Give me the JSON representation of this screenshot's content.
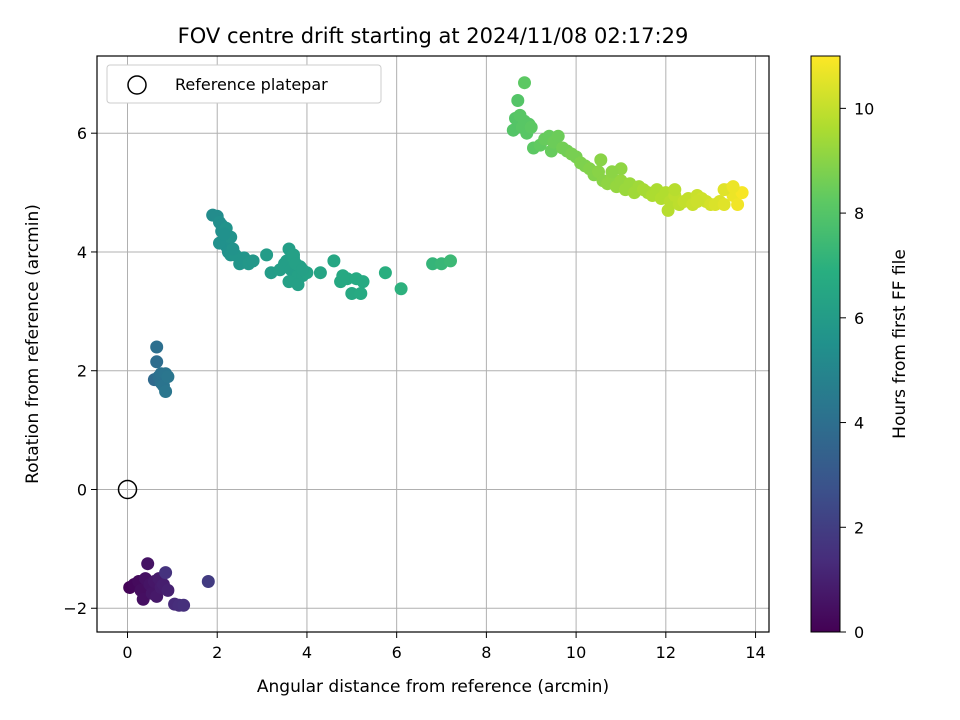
{
  "chart_data": {
    "type": "scatter",
    "title": "FOV centre drift starting at 2024/11/08 02:17:29",
    "xlabel": "Angular distance from reference (arcmin)",
    "ylabel": "Rotation from reference (arcmin)",
    "xlim": [
      -0.68,
      14.3
    ],
    "ylim": [
      -2.4,
      7.3
    ],
    "xticks": [
      0,
      2,
      4,
      6,
      8,
      10,
      12,
      14
    ],
    "yticks": [
      -2,
      0,
      2,
      4,
      6
    ],
    "xticklabels": [
      "0",
      "2",
      "4",
      "6",
      "8",
      "10",
      "12",
      "14"
    ],
    "yticklabels": [
      "−2",
      "0",
      "2",
      "4",
      "6"
    ],
    "grid": true,
    "legend": {
      "position": "upper-left",
      "entries": [
        {
          "label": "Reference platepar",
          "marker": "open-circle"
        }
      ]
    },
    "reference_point": {
      "x": 0,
      "y": 0
    },
    "colormap": "viridis",
    "colorbar": {
      "label": "Hours from first FF file",
      "min": 0,
      "max": 11,
      "ticks": [
        0,
        2,
        4,
        6,
        8,
        10
      ],
      "ticklabels": [
        "0",
        "2",
        "4",
        "6",
        "8",
        "10"
      ]
    },
    "points": [
      [
        0.05,
        -1.65,
        0.1
      ],
      [
        0.15,
        -1.6,
        0.2
      ],
      [
        0.25,
        -1.55,
        0.3
      ],
      [
        0.3,
        -1.7,
        0.4
      ],
      [
        0.35,
        -1.85,
        0.45
      ],
      [
        0.4,
        -1.5,
        0.5
      ],
      [
        0.45,
        -1.25,
        0.55
      ],
      [
        0.5,
        -1.6,
        0.6
      ],
      [
        0.55,
        -1.75,
        0.65
      ],
      [
        0.6,
        -1.55,
        0.7
      ],
      [
        0.65,
        -1.8,
        0.75
      ],
      [
        0.7,
        -1.5,
        0.8
      ],
      [
        0.75,
        -1.65,
        0.85
      ],
      [
        0.8,
        -1.6,
        0.9
      ],
      [
        0.9,
        -1.7,
        1.0
      ],
      [
        0.85,
        -1.4,
        1.6
      ],
      [
        1.05,
        -1.93,
        1.3
      ],
      [
        1.15,
        -1.95,
        1.4
      ],
      [
        1.25,
        -1.95,
        1.5
      ],
      [
        1.8,
        -1.55,
        1.9
      ],
      [
        0.6,
        1.85,
        3.8
      ],
      [
        0.65,
        2.15,
        3.9
      ],
      [
        0.65,
        2.4,
        4.0
      ],
      [
        0.7,
        1.9,
        4.0
      ],
      [
        0.75,
        1.8,
        4.1
      ],
      [
        0.75,
        1.95,
        4.1
      ],
      [
        0.8,
        1.75,
        4.2
      ],
      [
        0.85,
        1.95,
        4.2
      ],
      [
        0.85,
        1.65,
        4.3
      ],
      [
        0.9,
        1.9,
        4.3
      ],
      [
        1.9,
        4.62,
        5.3
      ],
      [
        2.0,
        4.6,
        5.3
      ],
      [
        2.05,
        4.5,
        5.4
      ],
      [
        2.1,
        4.45,
        5.4
      ],
      [
        2.1,
        4.35,
        5.4
      ],
      [
        2.15,
        4.2,
        5.5
      ],
      [
        2.2,
        4.1,
        5.5
      ],
      [
        2.05,
        4.15,
        5.5
      ],
      [
        2.25,
        4.0,
        5.5
      ],
      [
        2.3,
        4.25,
        5.6
      ],
      [
        2.2,
        4.4,
        5.6
      ],
      [
        2.3,
        3.95,
        5.6
      ],
      [
        2.4,
        3.95,
        5.7
      ],
      [
        2.5,
        3.8,
        5.7
      ],
      [
        2.6,
        3.9,
        5.7
      ],
      [
        2.7,
        3.8,
        5.8
      ],
      [
        2.8,
        3.85,
        5.8
      ],
      [
        2.15,
        4.3,
        5.5
      ],
      [
        2.35,
        4.05,
        5.6
      ],
      [
        3.1,
        3.95,
        6.0
      ],
      [
        3.2,
        3.65,
        6.0
      ],
      [
        3.4,
        3.7,
        6.1
      ],
      [
        3.5,
        3.8,
        6.1
      ],
      [
        3.55,
        3.85,
        6.1
      ],
      [
        3.6,
        4.05,
        6.1
      ],
      [
        3.65,
        3.7,
        6.1
      ],
      [
        3.7,
        3.9,
        6.2
      ],
      [
        3.75,
        3.5,
        6.2
      ],
      [
        3.8,
        3.6,
        6.2
      ],
      [
        3.85,
        3.75,
        6.2
      ],
      [
        3.7,
        3.95,
        6.2
      ],
      [
        3.9,
        3.6,
        6.2
      ],
      [
        4.0,
        3.65,
        6.3
      ],
      [
        3.6,
        3.5,
        6.2
      ],
      [
        3.8,
        3.45,
        6.2
      ],
      [
        3.75,
        3.8,
        6.2
      ],
      [
        3.9,
        3.7,
        6.2
      ],
      [
        4.3,
        3.65,
        6.4
      ],
      [
        4.6,
        3.85,
        6.5
      ],
      [
        4.75,
        3.5,
        6.6
      ],
      [
        4.8,
        3.6,
        6.6
      ],
      [
        4.9,
        3.55,
        6.6
      ],
      [
        5.0,
        3.3,
        6.6
      ],
      [
        5.1,
        3.55,
        6.7
      ],
      [
        5.2,
        3.3,
        6.7
      ],
      [
        5.25,
        3.5,
        6.7
      ],
      [
        5.75,
        3.65,
        6.9
      ],
      [
        6.1,
        3.38,
        7.0
      ],
      [
        6.8,
        3.8,
        7.2
      ],
      [
        7.0,
        3.8,
        7.3
      ],
      [
        7.2,
        3.85,
        7.4
      ],
      [
        8.6,
        6.05,
        8.0
      ],
      [
        8.65,
        6.25,
        8.0
      ],
      [
        8.7,
        6.55,
        8.0
      ],
      [
        8.75,
        6.3,
        8.1
      ],
      [
        8.8,
        6.1,
        8.1
      ],
      [
        8.85,
        6.2,
        8.1
      ],
      [
        8.9,
        6.0,
        8.1
      ],
      [
        8.95,
        6.15,
        8.1
      ],
      [
        8.85,
        6.85,
        8.2
      ],
      [
        9.0,
        6.1,
        8.2
      ],
      [
        9.05,
        5.75,
        8.2
      ],
      [
        9.2,
        5.8,
        8.3
      ],
      [
        9.3,
        5.9,
        8.4
      ],
      [
        9.4,
        5.95,
        8.4
      ],
      [
        9.45,
        5.7,
        8.4
      ],
      [
        9.5,
        5.85,
        8.5
      ],
      [
        9.6,
        5.95,
        8.5
      ],
      [
        9.7,
        5.75,
        8.6
      ],
      [
        9.8,
        5.7,
        8.6
      ],
      [
        9.9,
        5.65,
        8.7
      ],
      [
        10.0,
        5.6,
        8.7
      ],
      [
        10.1,
        5.5,
        8.8
      ],
      [
        10.2,
        5.45,
        8.8
      ],
      [
        10.3,
        5.4,
        8.9
      ],
      [
        10.4,
        5.3,
        8.9
      ],
      [
        10.5,
        5.35,
        9.0
      ],
      [
        10.55,
        5.55,
        9.0
      ],
      [
        10.6,
        5.2,
        9.0
      ],
      [
        10.7,
        5.15,
        9.1
      ],
      [
        10.8,
        5.25,
        9.1
      ],
      [
        10.9,
        5.1,
        9.2
      ],
      [
        11.0,
        5.2,
        9.2
      ],
      [
        11.1,
        5.05,
        9.3
      ],
      [
        11.2,
        5.15,
        9.3
      ],
      [
        11.3,
        5.0,
        9.4
      ],
      [
        11.4,
        5.1,
        9.4
      ],
      [
        11.5,
        5.05,
        9.5
      ],
      [
        11.6,
        5.0,
        9.5
      ],
      [
        11.7,
        4.95,
        9.6
      ],
      [
        11.8,
        5.05,
        9.6
      ],
      [
        11.9,
        4.9,
        9.7
      ],
      [
        12.0,
        5.0,
        9.7
      ],
      [
        12.05,
        4.7,
        9.8
      ],
      [
        12.1,
        4.85,
        9.8
      ],
      [
        12.2,
        4.95,
        9.9
      ],
      [
        12.3,
        4.8,
        9.9
      ],
      [
        12.4,
        4.85,
        10.0
      ],
      [
        12.5,
        4.9,
        10.0
      ],
      [
        12.6,
        4.8,
        10.1
      ],
      [
        12.7,
        4.95,
        10.1
      ],
      [
        12.8,
        4.9,
        10.2
      ],
      [
        12.9,
        4.85,
        10.2
      ],
      [
        13.0,
        4.8,
        10.3
      ],
      [
        13.1,
        4.8,
        10.4
      ],
      [
        13.2,
        4.85,
        10.4
      ],
      [
        13.3,
        4.8,
        10.5
      ],
      [
        13.4,
        5.05,
        10.6
      ],
      [
        13.5,
        4.95,
        10.7
      ],
      [
        13.6,
        4.8,
        10.8
      ],
      [
        13.7,
        5.0,
        10.9
      ],
      [
        11.0,
        5.4,
        9.1
      ],
      [
        12.2,
        5.05,
        9.8
      ],
      [
        13.3,
        5.05,
        10.5
      ],
      [
        10.8,
        5.35,
        9.05
      ],
      [
        12.7,
        4.85,
        10.15
      ],
      [
        13.5,
        5.1,
        10.7
      ]
    ]
  }
}
